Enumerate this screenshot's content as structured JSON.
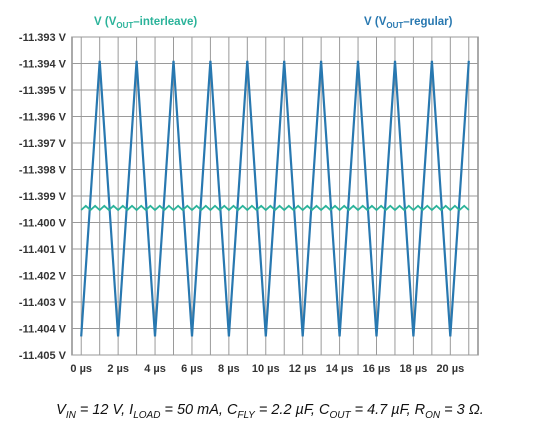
{
  "chart_data": {
    "type": "line",
    "x_unit": "µs",
    "x": [
      0,
      1,
      2,
      3,
      4,
      5,
      6,
      7,
      8,
      9,
      10,
      11,
      12,
      13,
      14,
      15,
      16,
      17,
      18,
      19,
      20,
      21
    ],
    "xlim": [
      -0.5,
      21.5
    ],
    "ylim": [
      -11.405,
      -11.393
    ],
    "x_ticks": [
      {
        "value": 0,
        "label": "0 µs"
      },
      {
        "value": 2,
        "label": "2 µs"
      },
      {
        "value": 4,
        "label": "4 µs"
      },
      {
        "value": 6,
        "label": "6 µs"
      },
      {
        "value": 8,
        "label": "8 µs"
      },
      {
        "value": 10,
        "label": "10 µs"
      },
      {
        "value": 12,
        "label": "12 µs"
      },
      {
        "value": 14,
        "label": "14 µs"
      },
      {
        "value": 16,
        "label": "16 µs"
      },
      {
        "value": 18,
        "label": "18 µs"
      },
      {
        "value": 20,
        "label": "20 µs"
      }
    ],
    "y_ticks": [
      {
        "value": -11.393,
        "label": "-11.393 V"
      },
      {
        "value": -11.394,
        "label": "-11.394 V"
      },
      {
        "value": -11.395,
        "label": "-11.395 V"
      },
      {
        "value": -11.396,
        "label": "-11.396 V"
      },
      {
        "value": -11.397,
        "label": "-11.397 V"
      },
      {
        "value": -11.398,
        "label": "-11.398 V"
      },
      {
        "value": -11.399,
        "label": "-11.399 V"
      },
      {
        "value": -11.4,
        "label": "-11.400 V"
      },
      {
        "value": -11.401,
        "label": "-11.401 V"
      },
      {
        "value": -11.402,
        "label": "-11.402 V"
      },
      {
        "value": -11.403,
        "label": "-11.403 V"
      },
      {
        "value": -11.404,
        "label": "-11.404 V"
      },
      {
        "value": -11.405,
        "label": "-11.405 V"
      }
    ],
    "grid": true,
    "series": [
      {
        "key": "regular",
        "color": "#2878b0",
        "values": [
          -11.4043,
          -11.3939,
          -11.4043,
          -11.3939,
          -11.4043,
          -11.3939,
          -11.4043,
          -11.3939,
          -11.4043,
          -11.3939,
          -11.4043,
          -11.3939,
          -11.4043,
          -11.3939,
          -11.4043,
          -11.3939,
          -11.4043,
          -11.3939,
          -11.4043,
          -11.3939,
          -11.4043,
          -11.3939
        ]
      },
      {
        "key": "interleave",
        "color": "#2bb39a",
        "interleave_ripple_amplitude": 8e-05,
        "interleave_mean": -11.39945
      }
    ],
    "legend": [
      {
        "key": "interleave",
        "prefix": "V (V",
        "sub": "OUT",
        "suffix": "–interleave)",
        "color": "#2bb39a"
      },
      {
        "key": "regular",
        "prefix": "V (V",
        "sub": "OUT",
        "suffix": "–regular)",
        "color": "#2878b0"
      }
    ],
    "legend_placement": "top"
  },
  "caption": {
    "parts": [
      {
        "t": "V"
      },
      {
        "sub": "IN"
      },
      {
        "t": " = 12 V, I"
      },
      {
        "sub": "LOAD"
      },
      {
        "t": " = 50 mA, C"
      },
      {
        "sub": "FLY"
      },
      {
        "t": " = 2.2 µF, C"
      },
      {
        "sub": "OUT"
      },
      {
        "t": " = 4.7 µF, R"
      },
      {
        "sub": "ON"
      },
      {
        "t": " = 3 Ω."
      }
    ]
  }
}
